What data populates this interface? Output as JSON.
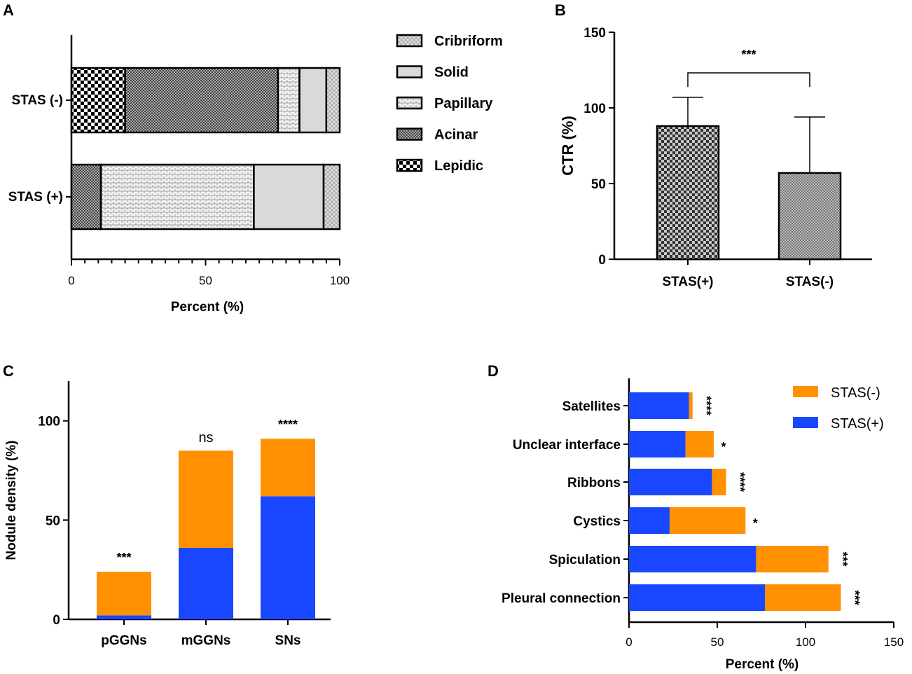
{
  "colors": {
    "orange": "#FF9100",
    "blue": "#1947FF",
    "gray_solid": "#D9D9D9",
    "axis": "#000000"
  },
  "chart_data": [
    {
      "panel": "A",
      "type": "bar",
      "orientation": "horizontal",
      "stacked": true,
      "categories": [
        "STAS (-)",
        "STAS (+)"
      ],
      "series": [
        {
          "name": "Lepidic",
          "pattern": "checker-large",
          "values": [
            20,
            0
          ]
        },
        {
          "name": "Acinar",
          "pattern": "checker-dense",
          "values": [
            57,
            11
          ]
        },
        {
          "name": "Papillary",
          "pattern": "bricks-light",
          "values": [
            8,
            57
          ]
        },
        {
          "name": "Solid",
          "pattern": "solid-gray",
          "values": [
            10,
            26
          ]
        },
        {
          "name": "Cribriform",
          "pattern": "crosshatch-light",
          "values": [
            5,
            6
          ]
        }
      ],
      "legend_order": [
        "Cribriform",
        "Solid",
        "Papillary",
        "Acinar",
        "Lepidic"
      ],
      "xlabel": "Percent (%)",
      "xlim": [
        0,
        100
      ],
      "xticks": [
        "0",
        "50",
        "100"
      ]
    },
    {
      "panel": "B",
      "type": "bar",
      "categories": [
        "STAS(+)",
        "STAS(-)"
      ],
      "values": [
        88,
        57
      ],
      "error_upper": [
        19,
        37
      ],
      "ylabel": "CTR (%)",
      "ylim": [
        0,
        150
      ],
      "yticks": [
        "0",
        "50",
        "100",
        "150"
      ],
      "significance": "***"
    },
    {
      "panel": "C",
      "type": "bar",
      "stacked": true,
      "categories": [
        "pGGNs",
        "mGGNs",
        "SNs"
      ],
      "series": [
        {
          "name": "STAS(+)",
          "color": "#1947FF",
          "values": [
            2,
            36,
            62
          ]
        },
        {
          "name": "STAS(-)",
          "color": "#FF9100",
          "values": [
            22,
            49,
            29
          ]
        }
      ],
      "ylabel": "Nodule density (%)",
      "ylim": [
        0,
        120
      ],
      "yticks": [
        "0",
        "50",
        "100"
      ],
      "significance": [
        "***",
        "ns",
        "****"
      ]
    },
    {
      "panel": "D",
      "type": "bar",
      "orientation": "horizontal",
      "stacked": true,
      "categories": [
        "Satellites",
        "Unclear interface",
        "Ribbons",
        "Cystics",
        "Spiculation",
        "Pleural connection"
      ],
      "series": [
        {
          "name": "STAS(+)",
          "color": "#1947FF",
          "values": [
            34,
            32,
            47,
            23,
            72,
            77
          ]
        },
        {
          "name": "STAS(-)",
          "color": "#FF9100",
          "values": [
            2,
            16,
            8,
            43,
            41,
            43
          ]
        }
      ],
      "legend_order": [
        "STAS(-)",
        "STAS(+)"
      ],
      "xlabel": "Percent (%)",
      "xlim": [
        0,
        150
      ],
      "xticks": [
        "0",
        "50",
        "100",
        "150"
      ],
      "significance": [
        "****",
        "*",
        "****",
        "*",
        "***",
        "***"
      ]
    }
  ]
}
